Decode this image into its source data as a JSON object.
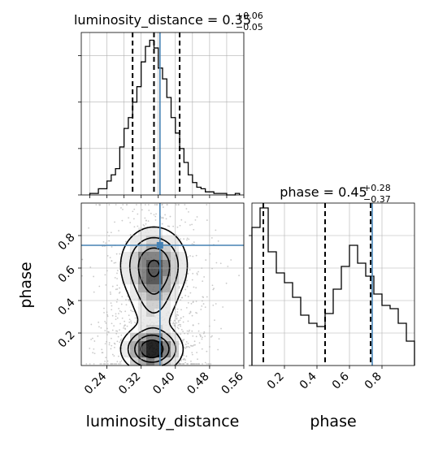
{
  "chart_data": [
    {
      "type": "histogram",
      "panel": "luminosity_distance-marginal",
      "title": {
        "label": "luminosity_distance = 0.35",
        "sup": "+0.06",
        "sub": "−0.05"
      },
      "xlim": [
        0.18,
        0.56
      ],
      "bins": [
        0.2,
        0.21,
        0.22,
        0.23,
        0.24,
        0.25,
        0.26,
        0.27,
        0.28,
        0.29,
        0.3,
        0.31,
        0.32,
        0.33,
        0.34,
        0.35,
        0.36,
        0.37,
        0.38,
        0.39,
        0.4,
        0.41,
        0.42,
        0.43,
        0.44,
        0.45,
        0.46,
        0.47,
        0.48,
        0.49,
        0.5,
        0.51,
        0.52,
        0.53,
        0.54,
        0.55
      ],
      "counts": [
        1,
        1,
        4,
        4,
        9,
        13,
        17,
        31,
        43,
        50,
        60,
        70,
        86,
        96,
        100,
        95,
        82,
        75,
        63,
        50,
        40,
        30,
        21,
        13,
        8,
        5,
        4,
        2,
        2,
        1,
        1,
        1,
        0,
        0,
        1
      ],
      "ylim": [
        0,
        105
      ],
      "quantiles": [
        0.3,
        0.35,
        0.41
      ],
      "truth": 0.364
    },
    {
      "type": "histogram",
      "panel": "phase-marginal",
      "title": {
        "label": "phase = 0.45",
        "sup": "+0.28",
        "sub": "−0.37"
      },
      "xlim": [
        0.0,
        1.0
      ],
      "bins": [
        0.0,
        0.05,
        0.1,
        0.15,
        0.2,
        0.25,
        0.3,
        0.35,
        0.4,
        0.45,
        0.5,
        0.55,
        0.6,
        0.65,
        0.7,
        0.75,
        0.8,
        0.85,
        0.9,
        0.95,
        1.0
      ],
      "counts": [
        85,
        97,
        70,
        57,
        51,
        42,
        31,
        26,
        24,
        32,
        47,
        61,
        74,
        63,
        55,
        44,
        37,
        35,
        26,
        15
      ],
      "ylim": [
        0,
        100
      ],
      "quantiles": [
        0.07,
        0.45,
        0.73
      ],
      "truth": 0.74,
      "xlabel": "phase",
      "xticks": [
        "0.2",
        "0.4",
        "0.6",
        "0.8"
      ],
      "xtick_values": [
        0.2,
        0.4,
        0.6,
        0.8
      ]
    },
    {
      "type": "contour-density",
      "panel": "joint",
      "xlabel": "luminosity_distance",
      "ylabel": "phase",
      "xlim": [
        0.18,
        0.56
      ],
      "ylim": [
        0.0,
        1.0
      ],
      "xticks": [
        "0.24",
        "0.32",
        "0.40",
        "0.48",
        "0.56"
      ],
      "xtick_values": [
        0.24,
        0.32,
        0.4,
        0.48,
        0.56
      ],
      "yticks": [
        "0.2",
        "0.4",
        "0.6",
        "0.8"
      ],
      "ytick_values": [
        0.2,
        0.4,
        0.6,
        0.8
      ],
      "truth": {
        "x": 0.364,
        "y": 0.74
      },
      "density_modes": [
        {
          "x": 0.345,
          "y": 0.1,
          "sx": 0.035,
          "sy": 0.07,
          "w": 1.0
        },
        {
          "x": 0.35,
          "y": 0.62,
          "sx": 0.04,
          "sy": 0.12,
          "w": 0.75
        },
        {
          "x": 0.35,
          "y": 0.4,
          "sx": 0.03,
          "sy": 0.12,
          "w": 0.3
        }
      ],
      "grid_colors": [
        "#ffffff",
        "#e6e6e6",
        "#c8c8c8",
        "#a0a0a0",
        "#6e6e6e",
        "#3c3c3c",
        "#000000"
      ]
    }
  ],
  "colors": {
    "truth": "#4682b4",
    "line": "#000000",
    "grid": "#b0b0b0",
    "scatter": "#bdbdbd"
  }
}
